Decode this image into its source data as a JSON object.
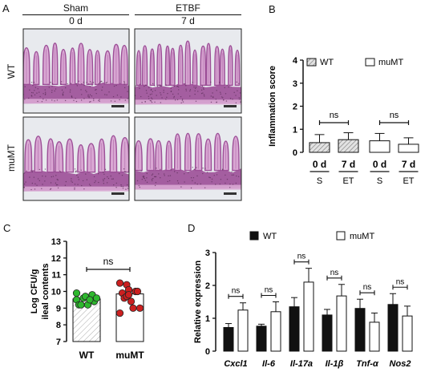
{
  "panels": {
    "A": {
      "label": "A",
      "col_groups": [
        "Sham",
        "ETBF"
      ],
      "col_days": [
        "0 d",
        "7 d"
      ],
      "row_labels": [
        "WT",
        "muMT"
      ],
      "colors": {
        "tissue_dark": "#9c4f97",
        "tissue_light": "#d9a7d3",
        "background": "#e8eaee"
      }
    },
    "B": {
      "label": "B",
      "chart_data": {
        "type": "bar",
        "ylabel": "Inflammation score",
        "ylim": [
          0,
          4
        ],
        "yticks": [
          0,
          1,
          2,
          3,
          4
        ],
        "categories": [
          "0 d",
          "7 d",
          "0 d",
          "7 d"
        ],
        "sublabels": [
          "S",
          "ET",
          "S",
          "ET"
        ],
        "series_names": [
          "WT",
          "muMT"
        ],
        "bars": [
          {
            "category": "0 d",
            "series": "WT",
            "value": 0.42,
            "err": 0.35
          },
          {
            "category": "7 d",
            "series": "WT",
            "value": 0.55,
            "err": 0.3
          },
          {
            "category": "0 d",
            "series": "muMT",
            "value": 0.5,
            "err": 0.32
          },
          {
            "category": "7 d",
            "series": "muMT",
            "value": 0.35,
            "err": 0.28
          }
        ],
        "annotations": [
          "ns",
          "ns"
        ],
        "colors": {
          "WT": "hatched-grey",
          "muMT": "#ffffff"
        }
      }
    },
    "C": {
      "label": "C",
      "chart_data": {
        "type": "bar",
        "ylabel_lines": [
          "Log CFU/g",
          "ileal contents"
        ],
        "ylim": [
          7,
          13
        ],
        "yticks": [
          7,
          8,
          9,
          10,
          11,
          12,
          13
        ],
        "categories": [
          "WT",
          "muMT"
        ],
        "values": [
          9.55,
          9.85
        ],
        "points": [
          [
            9.5,
            9.6,
            9.7,
            9.8,
            9.4,
            9.2,
            9.2,
            9.2,
            9.5,
            9.6,
            9.9
          ],
          [
            10.5,
            10.4,
            10.1,
            10.0,
            10.0,
            9.9,
            9.6,
            9.4,
            9.0,
            9.0,
            8.7,
            9.7,
            9.8
          ]
        ],
        "annotation": "ns",
        "colors": {
          "WT": "#2eb82e",
          "muMT": "#cc2020"
        }
      }
    },
    "D": {
      "label": "D",
      "chart_data": {
        "type": "bar",
        "ylabel": "Relative expression",
        "ylim": [
          0,
          3
        ],
        "yticks": [
          0,
          1,
          2,
          3
        ],
        "categories": [
          "Cxcl1",
          "Il-6",
          "Il-17a",
          "Il-1β",
          "Tnf-α",
          "Nos2"
        ],
        "series": [
          {
            "name": "WT",
            "values": [
              0.72,
              0.76,
              1.35,
              1.1,
              1.3,
              1.42
            ],
            "errors": [
              0.12,
              0.06,
              0.28,
              0.17,
              0.28,
              0.33
            ]
          },
          {
            "name": "muMT",
            "values": [
              1.25,
              1.2,
              2.1,
              1.68,
              0.88,
              1.07
            ],
            "errors": [
              0.22,
              0.3,
              0.42,
              0.35,
              0.28,
              0.3
            ]
          }
        ],
        "annotation": "ns",
        "colors": {
          "WT": "#111111",
          "muMT": "#ffffff"
        }
      }
    }
  }
}
